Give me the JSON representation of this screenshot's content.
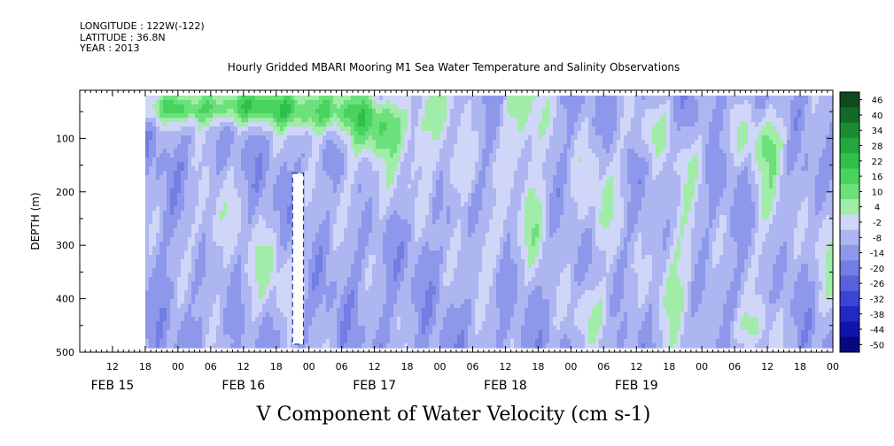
{
  "header": {
    "longitude": "LONGITUDE : 122W(-122)",
    "latitude": "LATITUDE : 36.8N",
    "year": "YEAR : 2013"
  },
  "chart_data": {
    "type": "heatmap",
    "title": "Hourly Gridded MBARI Mooring M1 Sea Water Temperature and Salinity Observations",
    "xlabel": "V Component of Water Velocity (cm s-1)",
    "ylabel": "DEPTH (m)",
    "ylim": [
      500,
      10
    ],
    "yticks": [
      100,
      200,
      300,
      400,
      500
    ],
    "x_hour_ticks": [
      "12",
      "18",
      "00",
      "06",
      "12",
      "18",
      "00",
      "06",
      "12",
      "18",
      "00",
      "06",
      "12",
      "18",
      "00",
      "06",
      "12",
      "18",
      "00",
      "06",
      "12",
      "18",
      "00"
    ],
    "day_labels": [
      "FEB 15",
      "FEB 16",
      "FEB 17",
      "FEB 18",
      "FEB 19"
    ],
    "x_range_hours": [
      6,
      144
    ],
    "data_range_hours": [
      18,
      144
    ],
    "depth_range": [
      20,
      485
    ],
    "colorbar": {
      "labels": [
        "46",
        "40",
        "34",
        "28",
        "22",
        "16",
        "10",
        "4",
        "-2",
        "-8",
        "-14",
        "-20",
        "-26",
        "-32",
        "-38",
        "-44",
        "-50"
      ],
      "colors": [
        "#0e4a1e",
        "#136a28",
        "#198c33",
        "#22a83e",
        "#2fc04a",
        "#47d35e",
        "#6be07b",
        "#a0eca8",
        "#d0d6f7",
        "#adb6f0",
        "#8e98ea",
        "#737de3",
        "#5862dc",
        "#3b44d3",
        "#2228c4",
        "#1014ac",
        "#05087e"
      ]
    },
    "missing_data_gap": {
      "start_hour": 45,
      "end_hour": 47,
      "depth_top": 165,
      "depth_bottom": 485
    }
  }
}
